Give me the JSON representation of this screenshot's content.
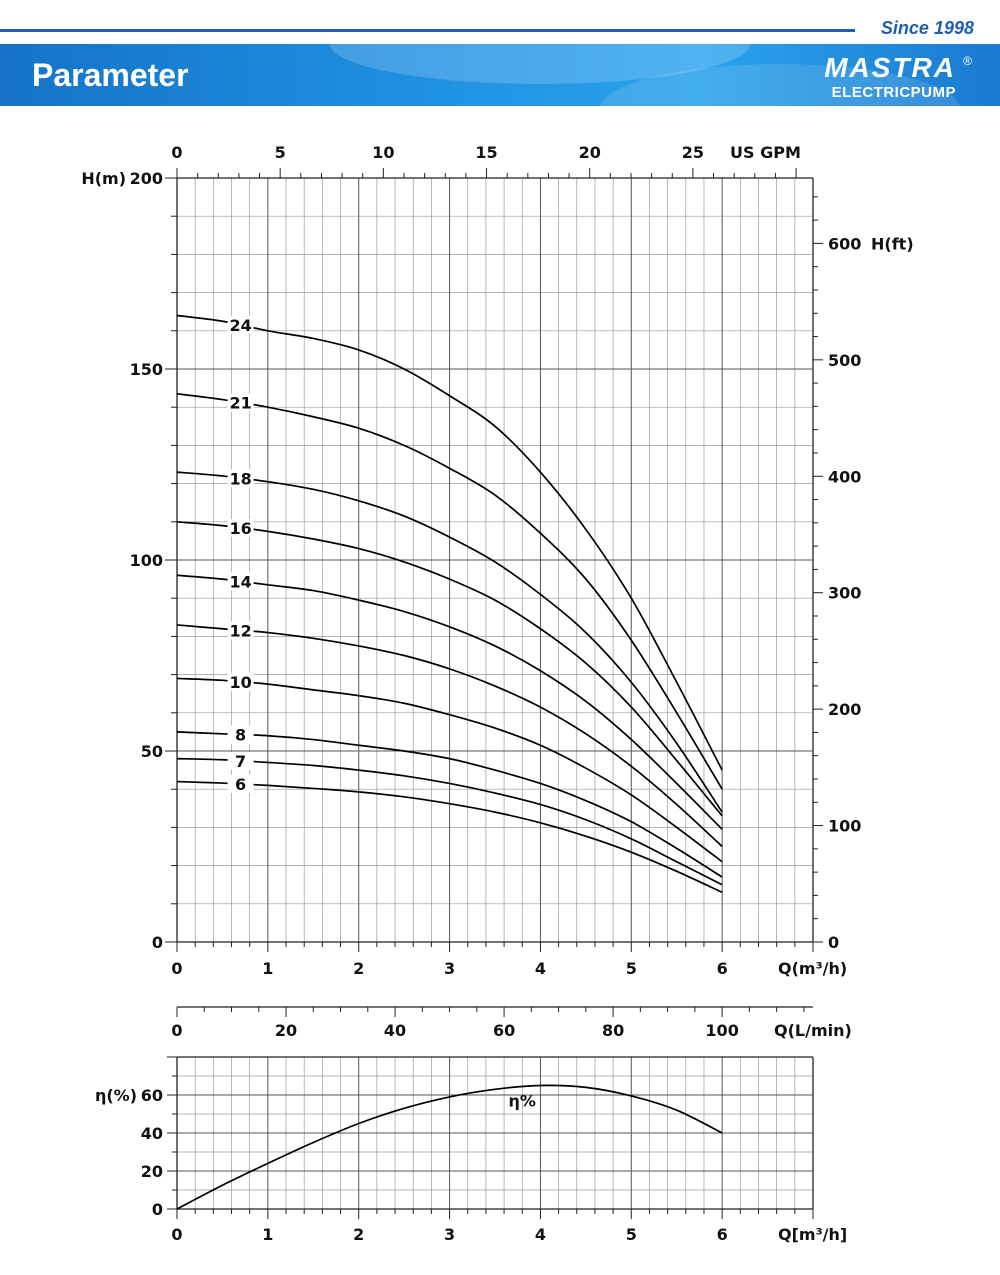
{
  "header": {
    "since": "Since 1998",
    "title": "Parameter",
    "logo_mark": "MASTRA",
    "logo_sub": "ELECTRICPUMP",
    "logo_reg": "®"
  },
  "chart_data": [
    {
      "type": "line",
      "title": "",
      "xlabel": "Q(m³/h)",
      "ylabel": "H(m)",
      "xlim": [
        0,
        7
      ],
      "ylim": [
        0,
        200
      ],
      "x_ticks": [
        0,
        1,
        2,
        3,
        4,
        5,
        6
      ],
      "y_ticks": [
        0,
        50,
        100,
        150,
        200
      ],
      "top_axis": {
        "label": "US GPM",
        "ticks": [
          0,
          5,
          10,
          15,
          20,
          25
        ]
      },
      "right_axis": {
        "label": "H(ft)",
        "ticks": [
          0,
          100,
          200,
          300,
          400,
          500,
          600
        ]
      },
      "grid": true,
      "series": [
        {
          "name": "24",
          "x": [
            0,
            0.5,
            1,
            1.5,
            2,
            2.5,
            3,
            3.5,
            4,
            4.5,
            5,
            5.5,
            6
          ],
          "y": [
            164,
            162.5,
            160,
            158,
            155,
            150,
            143,
            135,
            123,
            108,
            90,
            68,
            45
          ]
        },
        {
          "name": "21",
          "x": [
            0,
            0.5,
            1,
            1.5,
            2,
            2.5,
            3,
            3.5,
            4,
            4.5,
            5,
            5.5,
            6
          ],
          "y": [
            143.5,
            142,
            140,
            137.5,
            134.5,
            130,
            124,
            117,
            107,
            95,
            79,
            60,
            40
          ]
        },
        {
          "name": "18",
          "x": [
            0,
            0.5,
            1,
            1.5,
            2,
            2.5,
            3,
            3.5,
            4,
            4.5,
            5,
            5.5,
            6
          ],
          "y": [
            123,
            122,
            120.5,
            118.5,
            115.5,
            111.5,
            106,
            99.5,
            91,
            81,
            68,
            52,
            34
          ]
        },
        {
          "name": "16",
          "x": [
            0,
            0.5,
            1,
            1.5,
            2,
            2.5,
            3,
            3.5,
            4,
            4.5,
            5,
            5.5,
            6
          ],
          "y": [
            110,
            109,
            107.5,
            105.5,
            103,
            99.5,
            95,
            89.5,
            82,
            73,
            61.5,
            47.5,
            33
          ]
        },
        {
          "name": "14",
          "x": [
            0,
            0.5,
            1,
            1.5,
            2,
            2.5,
            3,
            3.5,
            4,
            4.5,
            5,
            5.5,
            6
          ],
          "y": [
            96,
            95,
            93.5,
            92,
            89.5,
            86.5,
            82.5,
            77.5,
            71,
            63,
            53,
            41.5,
            29.5
          ]
        },
        {
          "name": "12",
          "x": [
            0,
            0.5,
            1,
            1.5,
            2,
            2.5,
            3,
            3.5,
            4,
            4.5,
            5,
            5.5,
            6
          ],
          "y": [
            83,
            82,
            81,
            79.5,
            77.5,
            75,
            71.5,
            67,
            61.5,
            54.5,
            46,
            36,
            25
          ]
        },
        {
          "name": "10",
          "x": [
            0,
            0.5,
            1,
            1.5,
            2,
            2.5,
            3,
            3.5,
            4,
            4.5,
            5,
            5.5,
            6
          ],
          "y": [
            69,
            68.5,
            67.5,
            66,
            64.5,
            62.5,
            59.5,
            56,
            51.5,
            45.5,
            38.5,
            30,
            21
          ]
        },
        {
          "name": "8",
          "x": [
            0,
            0.5,
            1,
            1.5,
            2,
            2.5,
            3,
            3.5,
            4,
            4.5,
            5,
            5.5,
            6
          ],
          "y": [
            55,
            54.5,
            54,
            53,
            51.5,
            50,
            48,
            45,
            41.5,
            37,
            31.5,
            24.5,
            17
          ]
        },
        {
          "name": "7",
          "x": [
            0,
            0.5,
            1,
            1.5,
            2,
            2.5,
            3,
            3.5,
            4,
            4.5,
            5,
            5.5,
            6
          ],
          "y": [
            48,
            47.7,
            47,
            46.2,
            45,
            43.5,
            41.5,
            39,
            36,
            32,
            27,
            21,
            15
          ]
        },
        {
          "name": "6",
          "x": [
            0,
            0.5,
            1,
            1.5,
            2,
            2.5,
            3,
            3.5,
            4,
            4.5,
            5,
            5.5,
            6
          ],
          "y": [
            42,
            41.6,
            41,
            40.2,
            39.3,
            38,
            36.2,
            34,
            31.2,
            27.7,
            23.5,
            18.5,
            13
          ]
        }
      ]
    },
    {
      "type": "line",
      "title": "",
      "xlabel": "Q(L/min)",
      "ylabel": "",
      "xlim": [
        0,
        116.67
      ],
      "x_ticks": [
        0,
        20,
        40,
        60,
        80,
        100
      ]
    },
    {
      "type": "line",
      "title": "",
      "xlabel": "Q[m³/h]",
      "ylabel": "η(%)",
      "xlim": [
        0,
        7
      ],
      "ylim": [
        0,
        80
      ],
      "x_ticks": [
        0,
        1,
        2,
        3,
        4,
        5,
        6
      ],
      "y_ticks": [
        0,
        20,
        40,
        60
      ],
      "grid": true,
      "series": [
        {
          "name": "η%",
          "x": [
            0,
            0.5,
            1,
            1.5,
            2,
            2.5,
            3,
            3.5,
            4,
            4.5,
            5,
            5.5,
            6
          ],
          "y": [
            0,
            12.5,
            24,
            35,
            45,
            53,
            59,
            63,
            65,
            64,
            59.5,
            52,
            40
          ]
        }
      ]
    }
  ]
}
